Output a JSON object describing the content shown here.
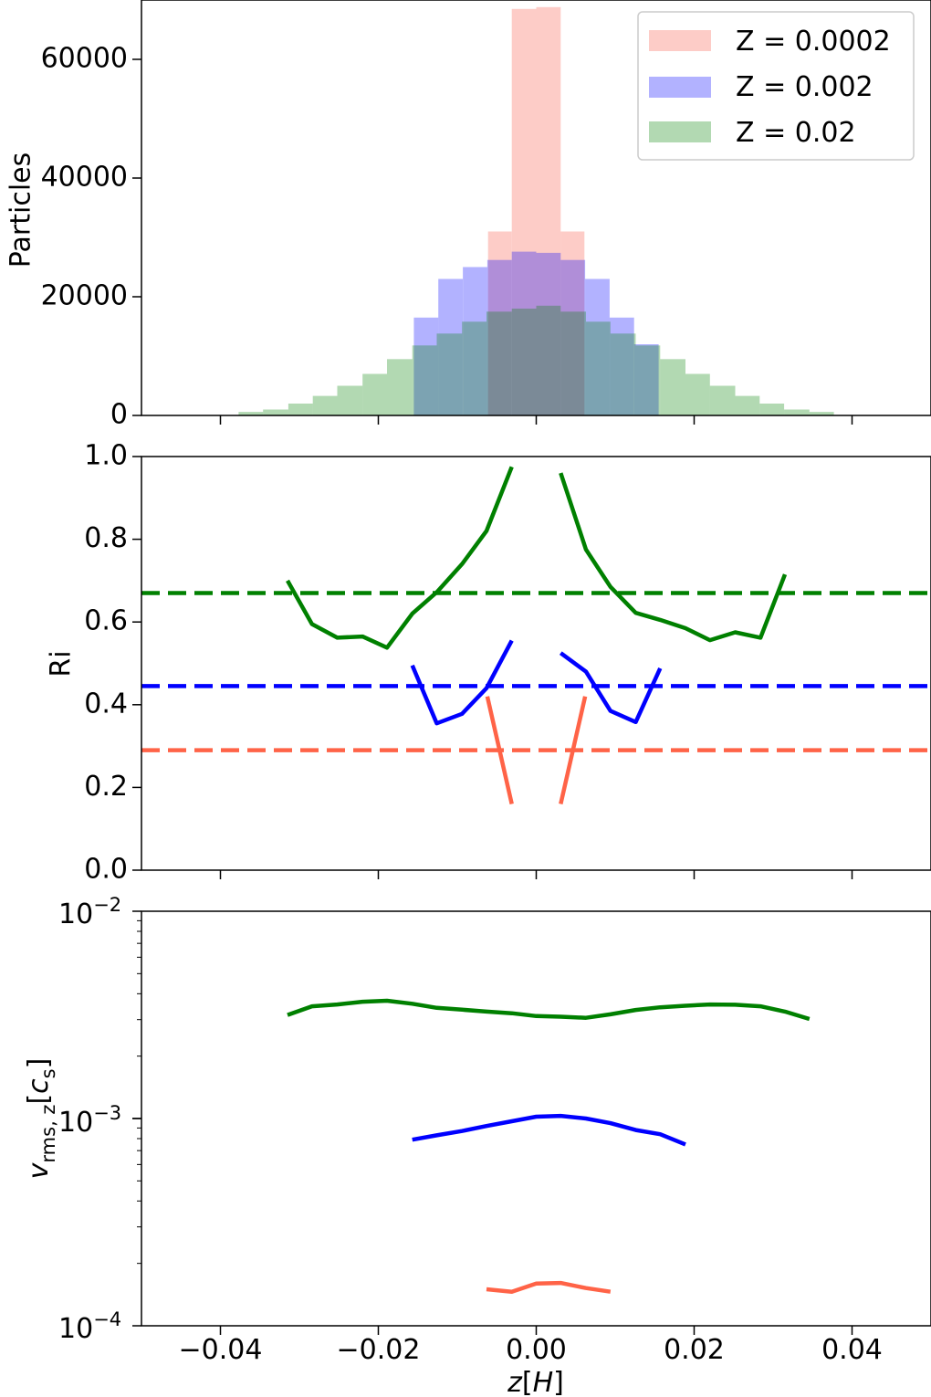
{
  "chart_data": [
    {
      "type": "bar",
      "panel": "top",
      "ylabel": "Particles",
      "xlim": [
        -0.05,
        0.05
      ],
      "ylim": [
        0,
        70000
      ],
      "yticks": [
        0,
        20000,
        40000,
        60000
      ],
      "ytick_labels": [
        "0",
        "20000",
        "40000",
        "60000"
      ],
      "grid": false,
      "legend_position": "top-right",
      "series": [
        {
          "name": "Z = 0.0002",
          "color": "#fa8072",
          "alpha": 0.4,
          "bins": [
            {
              "x0": -0.0092,
              "x1": -0.0061,
              "value": 0
            },
            {
              "x0": -0.0061,
              "x1": -0.0031,
              "value": 31000
            },
            {
              "x0": -0.0031,
              "x1": 0.0,
              "value": 68500
            },
            {
              "x0": 0.0,
              "x1": 0.0031,
              "value": 68800
            },
            {
              "x0": 0.0031,
              "x1": 0.0061,
              "value": 31000
            },
            {
              "x0": 0.0061,
              "x1": 0.0092,
              "value": 0
            }
          ]
        },
        {
          "name": "Z = 0.002",
          "color": "#0000ff",
          "alpha": 0.3,
          "bins": [
            {
              "x0": -0.0155,
              "x1": -0.0124,
              "value": 16500
            },
            {
              "x0": -0.0124,
              "x1": -0.0093,
              "value": 23000
            },
            {
              "x0": -0.0093,
              "x1": -0.0062,
              "value": 25000
            },
            {
              "x0": -0.0062,
              "x1": -0.0031,
              "value": 26200
            },
            {
              "x0": -0.0031,
              "x1": 0.0,
              "value": 27600
            },
            {
              "x0": 0.0,
              "x1": 0.0031,
              "value": 27400
            },
            {
              "x0": 0.0031,
              "x1": 0.0062,
              "value": 26200
            },
            {
              "x0": 0.0062,
              "x1": 0.0093,
              "value": 23000
            },
            {
              "x0": 0.0093,
              "x1": 0.0124,
              "value": 16500
            },
            {
              "x0": 0.0124,
              "x1": 0.0155,
              "value": 12000
            }
          ]
        },
        {
          "name": "Z = 0.02",
          "color": "#008000",
          "alpha": 0.3,
          "bins": [
            {
              "x0": -0.0377,
              "x1": -0.0346,
              "value": 600
            },
            {
              "x0": -0.0346,
              "x1": -0.0314,
              "value": 1000
            },
            {
              "x0": -0.0314,
              "x1": -0.0283,
              "value": 2000
            },
            {
              "x0": -0.0283,
              "x1": -0.0252,
              "value": 3300
            },
            {
              "x0": -0.0252,
              "x1": -0.022,
              "value": 5000
            },
            {
              "x0": -0.022,
              "x1": -0.0189,
              "value": 7000
            },
            {
              "x0": -0.0189,
              "x1": -0.0157,
              "value": 9500
            },
            {
              "x0": -0.0157,
              "x1": -0.0126,
              "value": 11800
            },
            {
              "x0": -0.0126,
              "x1": -0.0094,
              "value": 13800
            },
            {
              "x0": -0.0094,
              "x1": -0.0063,
              "value": 15800
            },
            {
              "x0": -0.0063,
              "x1": -0.0031,
              "value": 17500
            },
            {
              "x0": -0.0031,
              "x1": 0.0,
              "value": 18000
            },
            {
              "x0": 0.0,
              "x1": 0.0031,
              "value": 18500
            },
            {
              "x0": 0.0031,
              "x1": 0.0063,
              "value": 17500
            },
            {
              "x0": 0.0063,
              "x1": 0.0094,
              "value": 15800
            },
            {
              "x0": 0.0094,
              "x1": 0.0126,
              "value": 13800
            },
            {
              "x0": 0.0126,
              "x1": 0.0157,
              "value": 11800
            },
            {
              "x0": 0.0157,
              "x1": 0.0189,
              "value": 9500
            },
            {
              "x0": 0.0189,
              "x1": 0.022,
              "value": 7000
            },
            {
              "x0": 0.022,
              "x1": 0.0252,
              "value": 5000
            },
            {
              "x0": 0.0252,
              "x1": 0.0283,
              "value": 3300
            },
            {
              "x0": 0.0283,
              "x1": 0.0314,
              "value": 2000
            },
            {
              "x0": 0.0314,
              "x1": 0.0346,
              "value": 1000
            },
            {
              "x0": 0.0346,
              "x1": 0.0377,
              "value": 600
            }
          ]
        }
      ]
    },
    {
      "type": "line",
      "panel": "middle",
      "ylabel": "Ri",
      "xlim": [
        -0.05,
        0.05
      ],
      "ylim": [
        0.0,
        1.0
      ],
      "yticks": [
        0.0,
        0.2,
        0.4,
        0.6,
        0.8,
        1.0
      ],
      "ytick_labels": [
        "0.0",
        "0.2",
        "0.4",
        "0.6",
        "0.8",
        "1.0"
      ],
      "grid": false,
      "series": [
        {
          "color": "#008000",
          "segments": [
            [
              [
                -0.0315,
                0.7
              ],
              [
                -0.0284,
                0.595
              ],
              [
                -0.0252,
                0.562
              ],
              [
                -0.022,
                0.565
              ],
              [
                -0.0189,
                0.538
              ],
              [
                -0.0157,
                0.62
              ],
              [
                -0.0126,
                0.672
              ],
              [
                -0.0094,
                0.74
              ],
              [
                -0.0063,
                0.82
              ],
              [
                -0.0031,
                0.975
              ]
            ],
            [
              [
                0.0031,
                0.96
              ],
              [
                0.0063,
                0.775
              ],
              [
                0.0094,
                0.685
              ],
              [
                0.0126,
                0.622
              ],
              [
                0.0157,
                0.605
              ],
              [
                0.0189,
                0.585
              ],
              [
                0.022,
                0.556
              ],
              [
                0.0252,
                0.575
              ],
              [
                0.0284,
                0.562
              ],
              [
                0.0315,
                0.715
              ]
            ]
          ]
        },
        {
          "color": "#0000ff",
          "segments": [
            [
              [
                -0.0157,
                0.495
              ],
              [
                -0.0126,
                0.355
              ],
              [
                -0.0094,
                0.378
              ],
              [
                -0.0063,
                0.44
              ],
              [
                -0.0031,
                0.555
              ]
            ],
            [
              [
                0.0031,
                0.525
              ],
              [
                0.0063,
                0.48
              ],
              [
                0.0094,
                0.385
              ],
              [
                0.0126,
                0.358
              ],
              [
                0.0157,
                0.488
              ]
            ]
          ]
        },
        {
          "color": "#ff6347",
          "segments": [
            [
              [
                -0.0062,
                0.42
              ],
              [
                -0.0031,
                0.16
              ]
            ],
            [
              [
                0.0031,
                0.16
              ],
              [
                0.0062,
                0.42
              ]
            ]
          ]
        }
      ],
      "hlines": [
        {
          "y": 0.67,
          "color": "#008000",
          "style": "dashed"
        },
        {
          "y": 0.445,
          "color": "#0000ff",
          "style": "dashed"
        },
        {
          "y": 0.29,
          "color": "#ff6347",
          "style": "dashed"
        }
      ]
    },
    {
      "type": "line",
      "panel": "bottom",
      "ylabel": "v_rms,z[c_s]",
      "xlabel": "z[H]",
      "xlim": [
        -0.05,
        0.05
      ],
      "ylim": [
        0.0001,
        0.01
      ],
      "yscale": "log",
      "xticks": [
        -0.04,
        -0.02,
        0.0,
        0.02,
        0.04
      ],
      "xtick_labels": [
        "−0.04",
        "−0.02",
        "0.00",
        "0.02",
        "0.04"
      ],
      "grid": false,
      "series": [
        {
          "color": "#008000",
          "points": [
            [
              -0.0315,
              0.00316
            ],
            [
              -0.0284,
              0.00348
            ],
            [
              -0.0252,
              0.00355
            ],
            [
              -0.022,
              0.00366
            ],
            [
              -0.0189,
              0.0037
            ],
            [
              -0.0157,
              0.00358
            ],
            [
              -0.0126,
              0.00342
            ],
            [
              -0.0094,
              0.00335
            ],
            [
              -0.0063,
              0.00328
            ],
            [
              -0.0031,
              0.00322
            ],
            [
              0.0,
              0.00312
            ],
            [
              0.0031,
              0.0031
            ],
            [
              0.0063,
              0.00306
            ],
            [
              0.0094,
              0.00318
            ],
            [
              0.0126,
              0.00334
            ],
            [
              0.0157,
              0.00344
            ],
            [
              0.0189,
              0.0035
            ],
            [
              0.022,
              0.00355
            ],
            [
              0.0252,
              0.00354
            ],
            [
              0.0284,
              0.00348
            ],
            [
              0.0315,
              0.00328
            ],
            [
              0.0346,
              0.00302
            ]
          ]
        },
        {
          "color": "#0000ff",
          "points": [
            [
              -0.0157,
              0.00079
            ],
            [
              -0.0126,
              0.00083
            ],
            [
              -0.0094,
              0.00087
            ],
            [
              -0.0063,
              0.00092
            ],
            [
              -0.0031,
              0.00097
            ],
            [
              0.0,
              0.00102
            ],
            [
              0.0031,
              0.00103
            ],
            [
              0.0063,
              0.001
            ],
            [
              0.0094,
              0.00095
            ],
            [
              0.0126,
              0.00088
            ],
            [
              0.0157,
              0.00084
            ],
            [
              0.0189,
              0.00075
            ]
          ]
        },
        {
          "color": "#ff6347",
          "points": [
            [
              -0.0063,
              0.00015
            ],
            [
              -0.0031,
              0.000146
            ],
            [
              0.0,
              0.00016
            ],
            [
              0.0031,
              0.000161
            ],
            [
              0.0063,
              0.000152
            ],
            [
              0.0094,
              0.000146
            ]
          ]
        }
      ]
    }
  ],
  "text": {
    "ylabel_top": "Particles",
    "ylabel_mid": "Ri",
    "legend": [
      "Z = 0.0002",
      "Z = 0.002",
      "Z = 0.02"
    ],
    "log_ticks": [
      "10",
      "−2",
      "10",
      "−3",
      "10",
      "−4"
    ],
    "ylabel_bottom": [
      "v",
      "rms, z",
      "[",
      "c",
      "s",
      "]"
    ],
    "xlabel": [
      "z",
      "[",
      "H",
      "]"
    ]
  }
}
